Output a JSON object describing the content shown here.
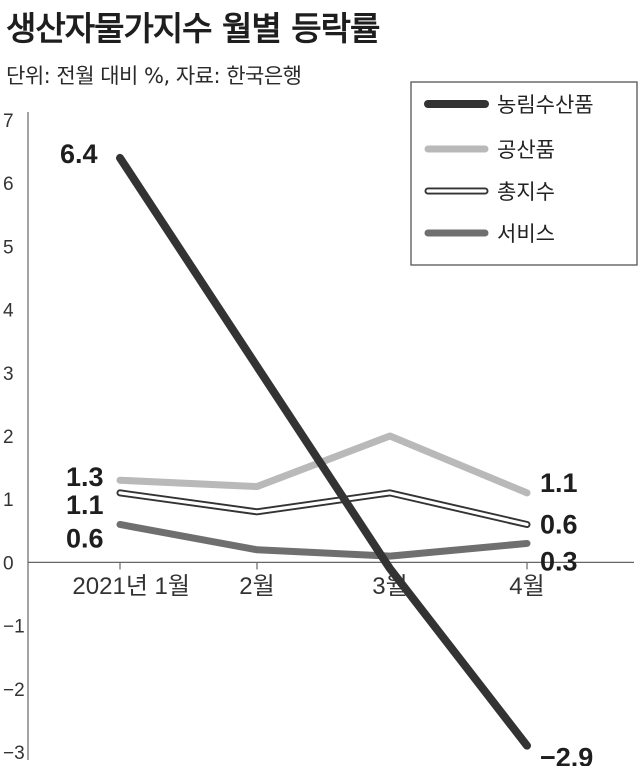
{
  "title": "생산자물가지수 월별 등락률",
  "subtitle": "단위: 전월 대비 %, 자료: 한국은행",
  "colors": {
    "agri": "#333333",
    "industrial": "#b9b9b9",
    "total": "#333333",
    "services": "#6f6f6f",
    "axis": "#666666"
  },
  "chart_data": {
    "type": "line",
    "title": "생산자물가지수 월별 등락률",
    "ylabel": "",
    "xlabel": "",
    "categories": [
      "2021년 1월",
      "2월",
      "3월",
      "4월"
    ],
    "ylim": [
      -3,
      7
    ],
    "yticks": [
      "7",
      "6",
      "5",
      "4",
      "3",
      "2",
      "1",
      "0",
      "−1",
      "−2",
      "−3"
    ],
    "grid": false,
    "legend_position": "top-right",
    "series": [
      {
        "name": "농림수산품",
        "key": "agri",
        "style": "thick-dark",
        "values": [
          6.4,
          3.1,
          -0.1,
          -2.9
        ],
        "labels": {
          "first": "6.4",
          "last": "−2.9"
        }
      },
      {
        "name": "공산품",
        "key": "industrial",
        "style": "light",
        "values": [
          1.3,
          1.2,
          2.0,
          1.1
        ],
        "labels": {
          "first": "1.3",
          "last": "1.1"
        }
      },
      {
        "name": "총지수",
        "key": "total",
        "style": "outline",
        "values": [
          1.1,
          0.8,
          1.1,
          0.6
        ],
        "labels": {
          "first": "1.1",
          "last": "0.6"
        }
      },
      {
        "name": "서비스",
        "key": "services",
        "style": "medium",
        "values": [
          0.6,
          0.2,
          0.1,
          0.3
        ],
        "labels": {
          "first": "0.6",
          "last": "0.3"
        }
      }
    ]
  }
}
